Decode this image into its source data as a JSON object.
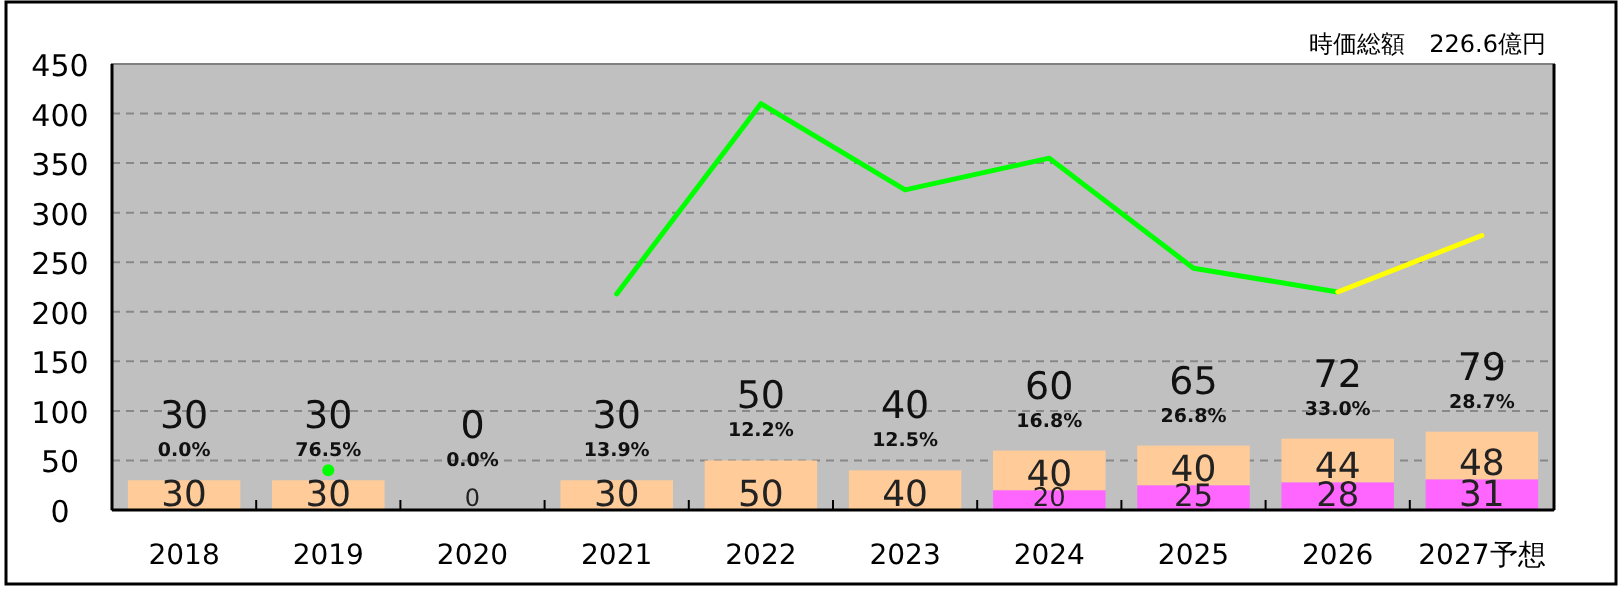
{
  "chart_data": {
    "type": "bar",
    "stacked": true,
    "subtitle": "時価総額　226.6億円",
    "categories": [
      "2018",
      "2019",
      "2020",
      "2021",
      "2022",
      "2023",
      "2024",
      "2025",
      "2026",
      "2027予想"
    ],
    "series": [
      {
        "color": "#ff66ff",
        "values": [
          0,
          0,
          0,
          0,
          0,
          0,
          20,
          25,
          28,
          31
        ],
        "value_labels": [
          null,
          null,
          null,
          null,
          null,
          null,
          "20",
          "25",
          "28",
          "31"
        ]
      },
      {
        "color": "#ffcc99",
        "values": [
          30,
          30,
          0,
          30,
          50,
          40,
          40,
          40,
          44,
          48
        ],
        "value_labels": [
          "30",
          "30",
          "0",
          "30",
          "50",
          "40",
          "40",
          "40",
          "44",
          "48"
        ]
      },
      {
        "type": "line",
        "color": "#00ff00",
        "values": [
          null,
          40,
          null,
          218,
          410,
          323,
          355,
          244,
          220,
          null
        ]
      },
      {
        "type": "line",
        "color": "#ffff00",
        "values": [
          null,
          null,
          null,
          null,
          null,
          null,
          null,
          null,
          220,
          277
        ]
      }
    ],
    "totals": [
      "30",
      "30",
      "0",
      "30",
      "50",
      "40",
      "60",
      "65",
      "72",
      "79"
    ],
    "annotations": [
      "0.0%",
      "76.5%",
      "0.0%",
      "13.9%",
      "12.2%",
      "12.5%",
      "16.8%",
      "26.8%",
      "33.0%",
      "28.7%"
    ],
    "ylim": [
      0,
      450
    ],
    "yticks": [
      0,
      50,
      100,
      150,
      200,
      250,
      300,
      350,
      400,
      450
    ],
    "grid": "y"
  }
}
